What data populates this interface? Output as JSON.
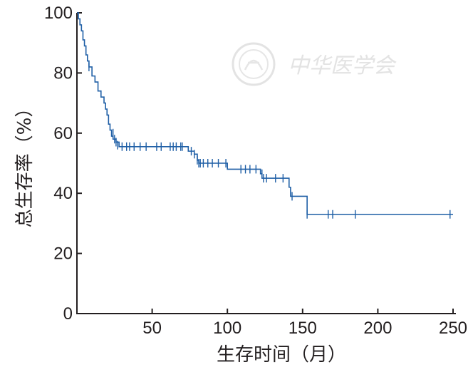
{
  "chart_data": {
    "type": "line",
    "title": "",
    "xlabel": "生存时间（月）",
    "ylabel": "总生存率（%）",
    "xlim": [
      0,
      250
    ],
    "ylim": [
      0,
      100
    ],
    "x_ticks": [
      50,
      100,
      150,
      200,
      250
    ],
    "y_ticks": [
      0,
      20,
      40,
      60,
      80,
      100
    ],
    "grid": false,
    "colors": {
      "line": "#1f5fa6",
      "axis": "#231f20"
    },
    "watermark": "中华医学会",
    "series": [
      {
        "style": "step",
        "points": [
          [
            0,
            100
          ],
          [
            1,
            98
          ],
          [
            2,
            96
          ],
          [
            3,
            94
          ],
          [
            4,
            91
          ],
          [
            5,
            89
          ],
          [
            6,
            86
          ],
          [
            7,
            84
          ],
          [
            8,
            82
          ],
          [
            10,
            79
          ],
          [
            12,
            77
          ],
          [
            14,
            74
          ],
          [
            16,
            72
          ],
          [
            18,
            70
          ],
          [
            19,
            68
          ],
          [
            20,
            66
          ],
          [
            21,
            63
          ],
          [
            22,
            61
          ],
          [
            23,
            59
          ],
          [
            24,
            58
          ],
          [
            26,
            57
          ],
          [
            28,
            55.5
          ],
          [
            72,
            55.5
          ],
          [
            74,
            54
          ],
          [
            78,
            53
          ],
          [
            80,
            51
          ],
          [
            81,
            50
          ],
          [
            100,
            48
          ],
          [
            121,
            48
          ],
          [
            122,
            46.5
          ],
          [
            123,
            45
          ],
          [
            140,
            45
          ],
          [
            141,
            42
          ],
          [
            142,
            39
          ],
          [
            152,
            39
          ],
          [
            153,
            33
          ],
          [
            250,
            33
          ]
        ],
        "censored": [
          [
            8,
            82
          ],
          [
            24,
            60
          ],
          [
            25,
            58
          ],
          [
            26,
            57
          ],
          [
            27,
            56
          ],
          [
            30,
            55.5
          ],
          [
            33,
            55.5
          ],
          [
            35,
            55.5
          ],
          [
            38,
            55.5
          ],
          [
            42,
            55.5
          ],
          [
            46,
            55.5
          ],
          [
            53,
            55.5
          ],
          [
            56,
            55.5
          ],
          [
            62,
            55.5
          ],
          [
            64,
            55.5
          ],
          [
            66,
            55.5
          ],
          [
            69,
            55.5
          ],
          [
            70,
            55.5
          ],
          [
            76,
            54
          ],
          [
            78,
            53
          ],
          [
            80,
            51
          ],
          [
            81,
            50
          ],
          [
            82,
            50
          ],
          [
            84,
            50
          ],
          [
            87,
            50
          ],
          [
            90,
            50
          ],
          [
            94,
            50
          ],
          [
            99,
            50
          ],
          [
            109,
            48
          ],
          [
            112,
            48
          ],
          [
            115,
            48
          ],
          [
            119,
            48
          ],
          [
            123,
            46.5
          ],
          [
            124,
            45
          ],
          [
            126,
            45
          ],
          [
            132,
            45
          ],
          [
            137,
            45
          ],
          [
            143,
            39
          ],
          [
            153,
            33
          ],
          [
            167,
            33
          ],
          [
            170,
            33
          ],
          [
            185,
            33
          ],
          [
            248,
            33
          ]
        ]
      }
    ]
  }
}
